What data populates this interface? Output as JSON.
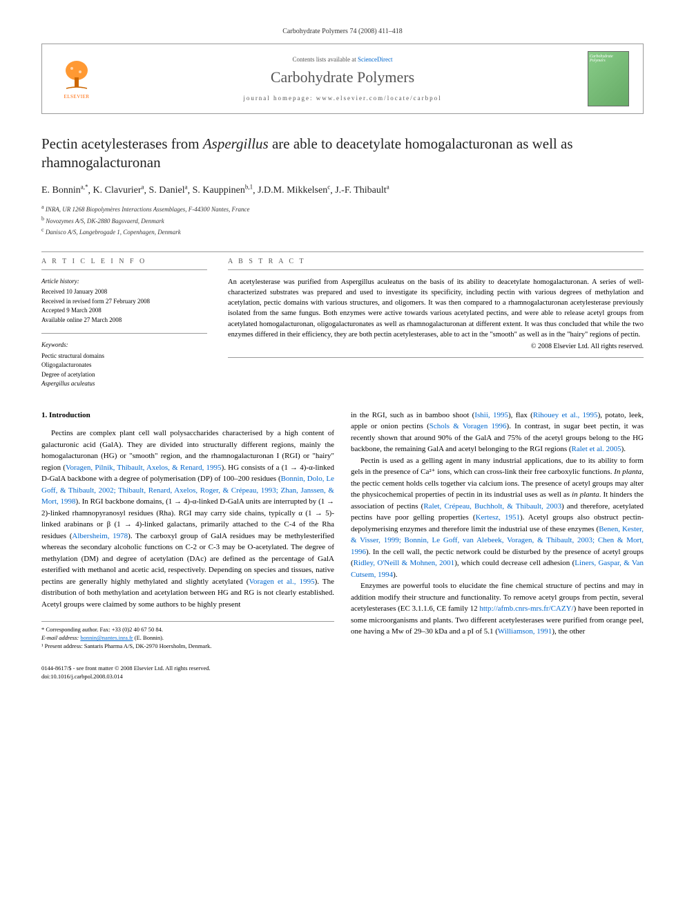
{
  "header": {
    "citation": "Carbohydrate Polymers 74 (2008) 411–418"
  },
  "publisher": {
    "contents_prefix": "Contents lists available at ",
    "contents_link": "ScienceDirect",
    "journal_name": "Carbohydrate Polymers",
    "homepage_label": "journal homepage: www.elsevier.com/locate/carbpol",
    "elsevier_label": "ELSEVIER",
    "cover_text": "Carbohydrate Polymers"
  },
  "article": {
    "title_pre": "Pectin acetylesterases from ",
    "title_italic": "Aspergillus",
    "title_post": " are able to deacetylate homogalacturonan as well as rhamnogalacturonan",
    "authors_html": "E. Bonnin",
    "authors": [
      {
        "name": "E. Bonnin",
        "sup": "a,*"
      },
      {
        "name": "K. Clavurier",
        "sup": "a"
      },
      {
        "name": "S. Daniel",
        "sup": "a"
      },
      {
        "name": "S. Kauppinen",
        "sup": "b,1"
      },
      {
        "name": "J.D.M. Mikkelsen",
        "sup": "c"
      },
      {
        "name": "J.-F. Thibault",
        "sup": "a"
      }
    ],
    "affiliations": [
      {
        "sup": "a",
        "text": "INRA, UR 1268 Biopolymères Interactions Assemblages, F-44300 Nantes, France"
      },
      {
        "sup": "b",
        "text": "Novozymes A/S, DK-2880 Bagsvaerd, Denmark"
      },
      {
        "sup": "c",
        "text": "Danisco A/S, Langebrogade 1, Copenhagen, Denmark"
      }
    ]
  },
  "info": {
    "heading": "A R T I C L E   I N F O",
    "history_label": "Article history:",
    "history": [
      "Received 10 January 2008",
      "Received in revised form 27 February 2008",
      "Accepted 9 March 2008",
      "Available online 27 March 2008"
    ],
    "keywords_label": "Keywords:",
    "keywords": [
      "Pectic structural domains",
      "Oligogalacturonates",
      "Degree of acetylation",
      "Aspergillus aculeatus"
    ]
  },
  "abstract": {
    "heading": "A B S T R A C T",
    "text": "An acetylesterase was purified from Aspergillus aculeatus on the basis of its ability to deacetylate homogalacturonan. A series of well-characterized substrates was prepared and used to investigate its specificity, including pectin with various degrees of methylation and acetylation, pectic domains with various structures, and oligomers. It was then compared to a rhamnogalacturonan acetylesterase previously isolated from the same fungus. Both enzymes were active towards various acetylated pectins, and were able to release acetyl groups from acetylated homogalacturonan, oligogalacturonates as well as rhamnogalacturonan at different extent. It was thus concluded that while the two enzymes differed in their efficiency, they are both pectin acetylesterases, able to act in the \"smooth\" as well as in the \"hairy\" regions of pectin.",
    "copyright": "© 2008 Elsevier Ltd. All rights reserved."
  },
  "body": {
    "section_number": "1.",
    "section_title": "Introduction",
    "col1_p1": "Pectins are complex plant cell wall polysaccharides characterised by a high content of galacturonic acid (GalA). They are divided into structurally different regions, mainly the homogalacturonan (HG) or \"smooth\" region, and the rhamnogalacturonan I (RGI) or \"hairy\" region (Voragen, Pilnik, Thibault, Axelos, & Renard, 1995). HG consists of a (1 → 4)-α-linked D-GalA backbone with a degree of polymerisation (DP) of 100–200 residues (Bonnin, Dolo, Le Goff, & Thibault, 2002; Thibault, Renard, Axelos, Roger, & Crépeau, 1993; Zhan, Janssen, & Mort, 1998). In RGI backbone domains, (1 → 4)-α-linked D-GalA units are interrupted by (1 → 2)-linked rhamnopyranosyl residues (Rha). RGI may carry side chains, typically α (1 → 5)-linked arabinans or β (1 → 4)-linked galactans, primarily attached to the C-4 of the Rha residues (Albersheim, 1978). The carboxyl group of GalA residues may be methylesterified whereas the secondary alcoholic functions on C-2 or C-3 may be O-acetylated. The degree of methylation (DM) and degree of acetylation (DAc) are defined as the percentage of GalA esterified with methanol and acetic acid, respectively. Depending on species and tissues, native pectins are generally highly methylated and slightly acetylated (Voragen et al., 1995). The distribution of both methylation and acetylation between HG and RG is not clearly established. Acetyl groups were claimed by some authors to be highly present",
    "col2_p1": "in the RGI, such as in bamboo shoot (Ishii, 1995), flax (Rihouey et al., 1995), potato, leek, apple or onion pectins (Schols & Voragen 1996). In contrast, in sugar beet pectin, it was recently shown that around 90% of the GalA and 75% of the acetyl groups belong to the HG backbone, the remaining GalA and acetyl belonging to the RGI regions (Ralet et al. 2005).",
    "col2_p2": "Pectin is used as a gelling agent in many industrial applications, due to its ability to form gels in the presence of Ca²⁺ ions, which can cross-link their free carboxylic functions. In planta, the pectic cement holds cells together via calcium ions. The presence of acetyl groups may alter the physicochemical properties of pectin in its industrial uses as well as in planta. It hinders the association of pectins (Ralet, Crépeau, Buchholt, & Thibault, 2003) and therefore, acetylated pectins have poor gelling properties (Kertesz, 1951). Acetyl groups also obstruct pectin-depolymerising enzymes and therefore limit the industrial use of these enzymes (Benen, Kester, & Visser, 1999; Bonnin, Le Goff, van Alebeek, Voragen, & Thibault, 2003; Chen & Mort, 1996). In the cell wall, the pectic network could be disturbed by the presence of acetyl groups (Ridley, O'Neill & Mohnen, 2001), which could decrease cell adhesion (Liners, Gaspar, & Van Cutsem, 1994).",
    "col2_p3": "Enzymes are powerful tools to elucidate the fine chemical structure of pectins and may in addition modify their structure and functionality. To remove acetyl groups from pectin, several acetylesterases (EC 3.1.1.6, CE family 12 http://afmb.cnrs-mrs.fr/CAZY/) have been reported in some microorganisms and plants. Two different acetylesterases were purified from orange peel, one having a Mw of 29–30 kDa and a pI of 5.1 (Williamson, 1991), the other"
  },
  "footnotes": {
    "corresponding": "* Corresponding author. Fax: +33 (0)2 40 67 50 84.",
    "email_label": "E-mail address:",
    "email": "bonnin@nantes.inra.fr",
    "email_suffix": "(E. Bonnin).",
    "present": "¹ Present address: Santaris Pharma A/S, DK-2970 Hoersholm, Denmark.",
    "issn": "0144-8617/$ - see front matter © 2008 Elsevier Ltd. All rights reserved.",
    "doi": "doi:10.1016/j.carbpol.2008.03.014"
  },
  "colors": {
    "link": "#0066cc",
    "elsevier_orange": "#ff6600",
    "text": "#000000",
    "muted": "#555555",
    "border": "#999999"
  }
}
